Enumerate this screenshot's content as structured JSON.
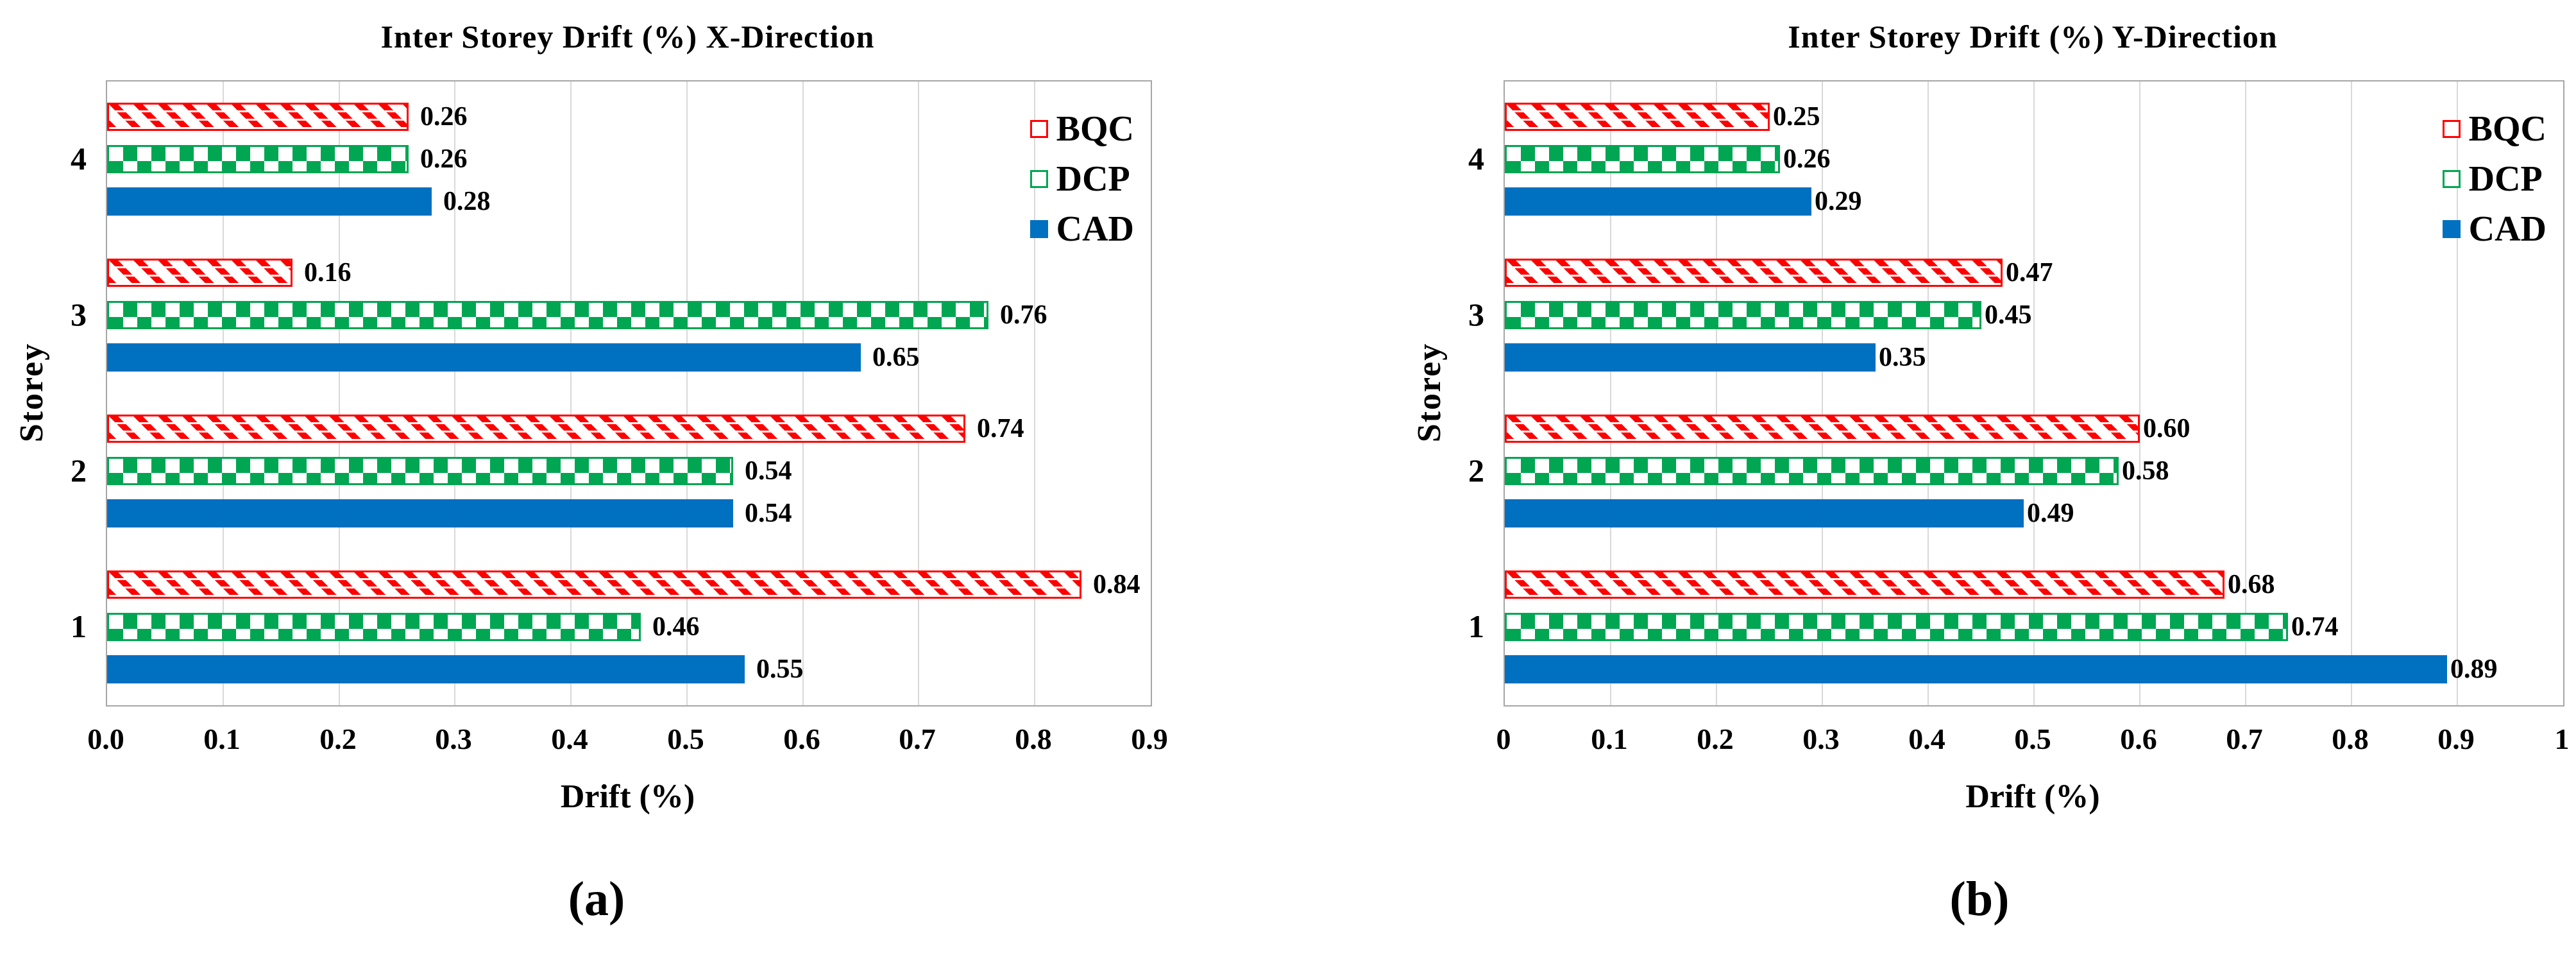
{
  "figure": {
    "background": "#FFFFFF",
    "colors": {
      "bqc": "#FF0000",
      "dcp": "#00A651",
      "cad": "#0070C0",
      "grid": "#D9D9D9",
      "frame": "#A6A6A6",
      "text": "#000000"
    }
  },
  "chart_data": [
    {
      "type": "bar",
      "orientation": "horizontal",
      "title": "Inter Storey Drift (%) X-Direction",
      "xlabel": "Drift (%)",
      "ylabel": "Storey",
      "caption": "(a)",
      "categories": [
        "4",
        "3",
        "2",
        "1"
      ],
      "xlim": [
        0,
        0.9
      ],
      "xtick_step": 0.1,
      "xticks": [
        "0.0",
        "0.1",
        "0.2",
        "0.3",
        "0.4",
        "0.5",
        "0.6",
        "0.7",
        "0.8",
        "0.9"
      ],
      "grid": "vertical",
      "legend_position": "top-right-inside",
      "legend": [
        "BQC",
        "DCP",
        "CAD"
      ],
      "series": [
        {
          "name": "BQC",
          "style": "red-diagonal-hatch",
          "values": [
            0.26,
            0.16,
            0.74,
            0.84
          ],
          "labels": [
            "0.26",
            "0.16",
            "0.74",
            "0.84"
          ]
        },
        {
          "name": "DCP",
          "style": "green-checkerboard",
          "values": [
            0.26,
            0.76,
            0.54,
            0.46
          ],
          "labels": [
            "0.26",
            "0.76",
            "0.54",
            "0.46"
          ]
        },
        {
          "name": "CAD",
          "style": "solid-blue",
          "values": [
            0.28,
            0.65,
            0.54,
            0.55
          ],
          "labels": [
            "0.28",
            "0.65",
            "0.54",
            "0.55"
          ]
        }
      ]
    },
    {
      "type": "bar",
      "orientation": "horizontal",
      "title": "Inter Storey Drift (%) Y-Direction",
      "xlabel": "Drift (%)",
      "ylabel": "Storey",
      "caption": "(b)",
      "categories": [
        "4",
        "3",
        "2",
        "1"
      ],
      "xlim": [
        0,
        1
      ],
      "xtick_step": 0.1,
      "xticks": [
        "0",
        "0.1",
        "0.2",
        "0.3",
        "0.4",
        "0.5",
        "0.6",
        "0.7",
        "0.8",
        "0.9",
        "1"
      ],
      "grid": "vertical",
      "legend_position": "top-right-inside",
      "legend": [
        "BQC",
        "DCP",
        "CAD"
      ],
      "series": [
        {
          "name": "BQC",
          "style": "red-diagonal-hatch",
          "values": [
            0.25,
            0.47,
            0.6,
            0.68
          ],
          "labels": [
            "0.25",
            "0.47",
            "0.60",
            "0.68"
          ]
        },
        {
          "name": "DCP",
          "style": "green-checkerboard",
          "values": [
            0.26,
            0.45,
            0.58,
            0.74
          ],
          "labels": [
            "0.26",
            "0.45",
            "0.58",
            "0.74"
          ]
        },
        {
          "name": "CAD",
          "style": "solid-blue",
          "values": [
            0.29,
            0.35,
            0.49,
            0.89
          ],
          "labels": [
            "0.29",
            "0.35",
            "0.49",
            "0.89"
          ]
        }
      ]
    }
  ]
}
